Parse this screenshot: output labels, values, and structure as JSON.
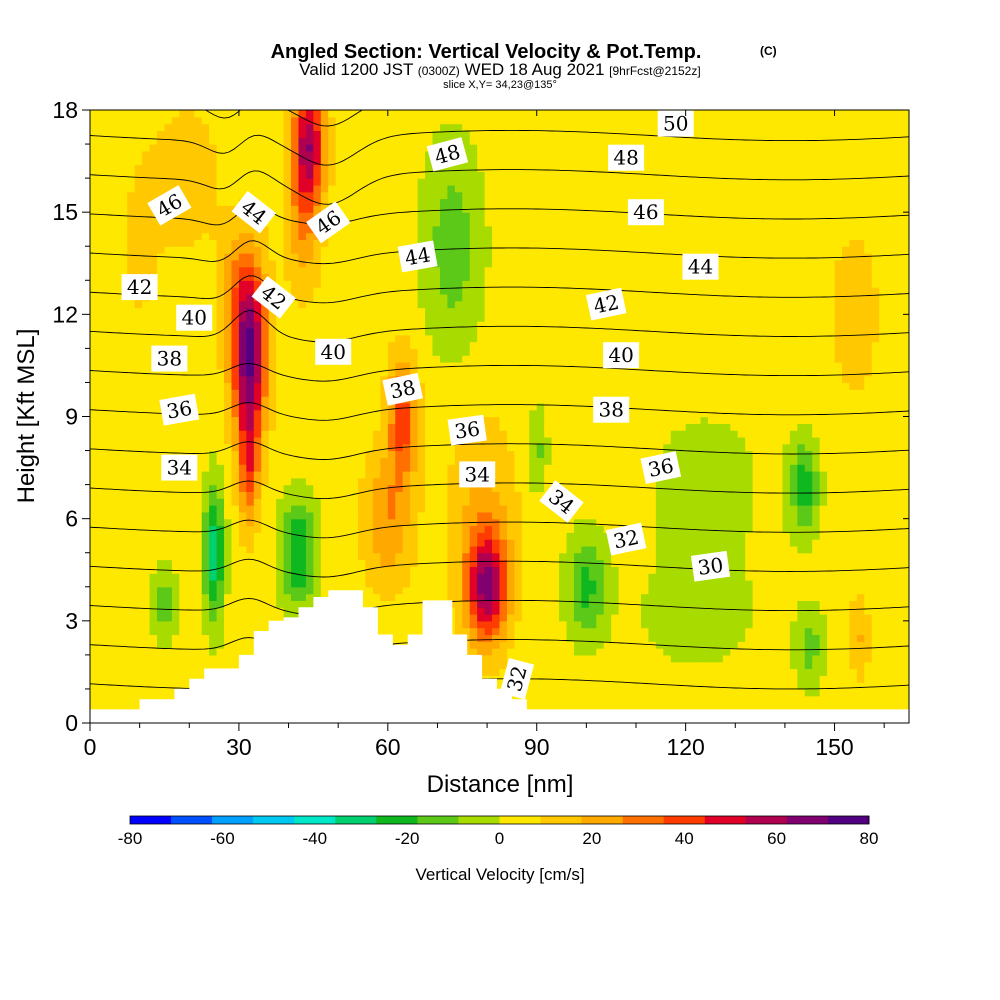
{
  "chart_data": {
    "type": "heatmap",
    "title": "Angled Section: Vertical Velocity & Pot.Temp.",
    "title_mark": "(C)",
    "subtitle_parts": [
      "Valid 1200 JST",
      "(0300Z)",
      "WED 18 Aug 2021",
      "[9hrFcst@2152z]"
    ],
    "slice_text": "slice X,Y= 34,23@135°",
    "xlabel": "Distance [nm]",
    "ylabel": "Height [Kft MSL]",
    "xlim": [
      0,
      165
    ],
    "ylim": [
      0,
      18
    ],
    "x_ticks": [
      0,
      30,
      60,
      90,
      120,
      150
    ],
    "y_ticks": [
      0,
      3,
      6,
      9,
      12,
      15,
      18
    ],
    "colorbar": {
      "label": "Vertical Velocity [cm/s]",
      "ticks": [
        -80,
        -60,
        -40,
        -20,
        0,
        20,
        40,
        60,
        80
      ],
      "colors": [
        "#0000ff",
        "#0050ff",
        "#00a0ff",
        "#00c8f0",
        "#00e8c8",
        "#00d070",
        "#10b820",
        "#5cc818",
        "#a8dc00",
        "#ffe800",
        "#ffc800",
        "#ffa800",
        "#ff7000",
        "#ff3c00",
        "#e00028",
        "#b00050",
        "#800070",
        "#500080"
      ]
    },
    "terrain": [
      [
        0,
        0.4
      ],
      [
        10,
        0.4
      ],
      [
        10,
        0.7
      ],
      [
        17,
        0.7
      ],
      [
        17,
        1.0
      ],
      [
        20,
        1.0
      ],
      [
        20,
        1.3
      ],
      [
        23,
        1.3
      ],
      [
        23,
        1.6
      ],
      [
        30,
        1.6
      ],
      [
        30,
        2.0
      ],
      [
        33,
        2.0
      ],
      [
        33,
        2.7
      ],
      [
        36,
        2.7
      ],
      [
        36,
        3.0
      ],
      [
        39,
        3.0
      ],
      [
        39,
        3.1
      ],
      [
        42,
        3.1
      ],
      [
        42,
        3.4
      ],
      [
        45,
        3.4
      ],
      [
        45,
        3.7
      ],
      [
        48,
        3.7
      ],
      [
        48,
        3.9
      ],
      [
        55,
        3.9
      ],
      [
        55,
        3.4
      ],
      [
        58,
        3.4
      ],
      [
        58,
        2.6
      ],
      [
        61,
        2.6
      ],
      [
        61,
        2.3
      ],
      [
        64,
        2.3
      ],
      [
        64,
        2.6
      ],
      [
        67,
        2.6
      ],
      [
        67,
        3.6
      ],
      [
        73,
        3.6
      ],
      [
        73,
        2.6
      ],
      [
        76,
        2.6
      ],
      [
        76,
        2.0
      ],
      [
        79,
        2.0
      ],
      [
        79,
        1.3
      ],
      [
        82,
        1.3
      ],
      [
        82,
        1.0
      ],
      [
        85,
        1.0
      ],
      [
        85,
        0.7
      ],
      [
        88,
        0.7
      ],
      [
        88,
        0.4
      ],
      [
        165,
        0.4
      ]
    ],
    "wv_blobs": [
      {
        "x": 32,
        "y": 11.0,
        "sx": 3.5,
        "sy": 2.6,
        "a": 70
      },
      {
        "x": 32,
        "y": 7.5,
        "sx": 2.0,
        "sy": 1.8,
        "a": 30
      },
      {
        "x": 28,
        "y": 13.0,
        "sx": 3.0,
        "sy": 1.6,
        "a": 10
      },
      {
        "x": 44,
        "y": 17.0,
        "sx": 3.2,
        "sy": 1.8,
        "a": 55
      },
      {
        "x": 43,
        "y": 14.5,
        "sx": 3.5,
        "sy": 2.0,
        "a": 18
      },
      {
        "x": 63,
        "y": 9.0,
        "sx": 3.0,
        "sy": 1.8,
        "a": 35
      },
      {
        "x": 60,
        "y": 6.0,
        "sx": 5.0,
        "sy": 2.0,
        "a": 22
      },
      {
        "x": 80,
        "y": 4.0,
        "sx": 4.0,
        "sy": 1.6,
        "a": 55
      },
      {
        "x": 79,
        "y": 6.0,
        "sx": 7.0,
        "sy": 3.0,
        "a": 15
      },
      {
        "x": 25,
        "y": 5.0,
        "sx": 2.0,
        "sy": 2.0,
        "a": -38
      },
      {
        "x": 42,
        "y": 5.0,
        "sx": 3.5,
        "sy": 1.6,
        "a": -32
      },
      {
        "x": 15,
        "y": 3.5,
        "sx": 2.5,
        "sy": 1.0,
        "a": -20
      },
      {
        "x": 73,
        "y": 14.0,
        "sx": 6.0,
        "sy": 3.0,
        "a": -18
      },
      {
        "x": 100,
        "y": 4.0,
        "sx": 4.0,
        "sy": 1.5,
        "a": -24
      },
      {
        "x": 90,
        "y": 8.0,
        "sx": 2.0,
        "sy": 1.2,
        "a": -16
      },
      {
        "x": 144,
        "y": 7.0,
        "sx": 3.0,
        "sy": 1.4,
        "a": -26
      },
      {
        "x": 124,
        "y": 7.0,
        "sx": 16.0,
        "sy": 3.0,
        "a": -6
      },
      {
        "x": 122,
        "y": 3.0,
        "sx": 14.0,
        "sy": 1.8,
        "a": -6
      },
      {
        "x": 154,
        "y": 12.0,
        "sx": 10.0,
        "sy": 5.0,
        "a": 6
      },
      {
        "x": 145,
        "y": 2.2,
        "sx": 3.0,
        "sy": 1.2,
        "a": -16
      },
      {
        "x": 155,
        "y": 2.5,
        "sx": 2.0,
        "sy": 1.2,
        "a": 14
      },
      {
        "x": 10,
        "y": 14.0,
        "sx": 6.0,
        "sy": 4.0,
        "a": 6
      },
      {
        "x": 20,
        "y": 16.0,
        "sx": 6.0,
        "sy": 2.0,
        "a": 12
      }
    ],
    "theta_levels": [
      29,
      30,
      31,
      32,
      33,
      34,
      35,
      36,
      37,
      38,
      39,
      40,
      41,
      42,
      43,
      44,
      45,
      46,
      47,
      48,
      49,
      50,
      51
    ],
    "contour_labels": [
      {
        "text": "50",
        "x": 118,
        "y": 17.6,
        "rot": 0
      },
      {
        "text": "48",
        "x": 72,
        "y": 16.7,
        "rot": -15
      },
      {
        "text": "48",
        "x": 108,
        "y": 16.6,
        "rot": 0
      },
      {
        "text": "46",
        "x": 16,
        "y": 15.2,
        "rot": -30
      },
      {
        "text": "44",
        "x": 33,
        "y": 15.0,
        "rot": 38
      },
      {
        "text": "46",
        "x": 48,
        "y": 14.7,
        "rot": -35
      },
      {
        "text": "46",
        "x": 112,
        "y": 15.0,
        "rot": 0
      },
      {
        "text": "44",
        "x": 66,
        "y": 13.7,
        "rot": -10
      },
      {
        "text": "44",
        "x": 123,
        "y": 13.4,
        "rot": 0
      },
      {
        "text": "42",
        "x": 10,
        "y": 12.8,
        "rot": 0
      },
      {
        "text": "42",
        "x": 37,
        "y": 12.5,
        "rot": 38
      },
      {
        "text": "42",
        "x": 104,
        "y": 12.3,
        "rot": -12
      },
      {
        "text": "40",
        "x": 21,
        "y": 11.9,
        "rot": 0
      },
      {
        "text": "40",
        "x": 49,
        "y": 10.9,
        "rot": 0
      },
      {
        "text": "40",
        "x": 107,
        "y": 10.8,
        "rot": 0
      },
      {
        "text": "38",
        "x": 16,
        "y": 10.7,
        "rot": 0
      },
      {
        "text": "38",
        "x": 63,
        "y": 9.8,
        "rot": -12
      },
      {
        "text": "38",
        "x": 105,
        "y": 9.2,
        "rot": 0
      },
      {
        "text": "36",
        "x": 18,
        "y": 9.2,
        "rot": -10
      },
      {
        "text": "36",
        "x": 76,
        "y": 8.6,
        "rot": -8
      },
      {
        "text": "36",
        "x": 115,
        "y": 7.5,
        "rot": -12
      },
      {
        "text": "34",
        "x": 18,
        "y": 7.5,
        "rot": 0
      },
      {
        "text": "34",
        "x": 78,
        "y": 7.3,
        "rot": 0
      },
      {
        "text": "34",
        "x": 95,
        "y": 6.5,
        "rot": 38
      },
      {
        "text": "32",
        "x": 108,
        "y": 5.4,
        "rot": -12
      },
      {
        "text": "30",
        "x": 125,
        "y": 4.6,
        "rot": -8
      },
      {
        "text": "32",
        "x": 86,
        "y": 1.3,
        "rot": -75
      }
    ]
  }
}
